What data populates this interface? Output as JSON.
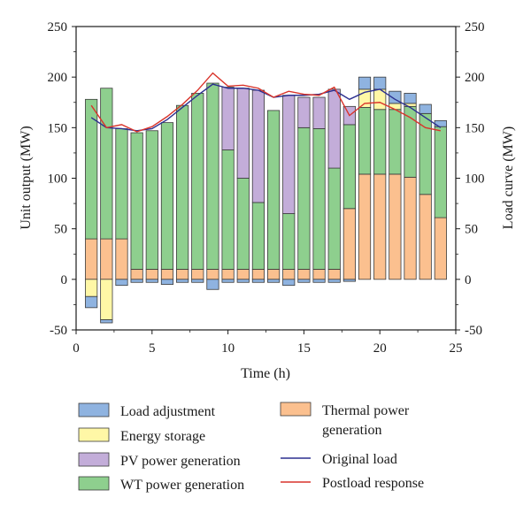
{
  "chart_data": {
    "type": "bar",
    "subtype": "stacked-bar-with-lines",
    "xlabel": "Time (h)",
    "ylabel": "Unit output (MW)",
    "y2label": "Load curve (MW)",
    "xlim": [
      0,
      25
    ],
    "ylim": [
      -50,
      250
    ],
    "y2lim": [
      -50,
      250
    ],
    "xticks": [
      0,
      5,
      10,
      15,
      20,
      25
    ],
    "yticks": [
      -50,
      0,
      50,
      100,
      150,
      200,
      250
    ],
    "legend_position": "bottom",
    "x": [
      1,
      2,
      3,
      4,
      5,
      6,
      7,
      8,
      9,
      10,
      11,
      12,
      13,
      14,
      15,
      16,
      17,
      18,
      19,
      20,
      21,
      22,
      23,
      24
    ],
    "series": [
      {
        "name": "Thermal power generation",
        "key": "thermal",
        "color": "#FBC08F",
        "values": [
          40,
          40,
          40,
          10,
          10,
          10,
          10,
          10,
          10,
          10,
          10,
          10,
          10,
          10,
          10,
          10,
          10,
          70,
          104,
          104,
          104,
          101,
          84,
          61
        ]
      },
      {
        "name": "WT power generation",
        "key": "wt",
        "color": "#8ECF8E",
        "values": [
          138,
          149,
          109,
          135,
          137,
          145,
          162,
          174,
          184,
          118,
          90,
          66,
          157,
          55,
          140,
          139,
          100,
          83,
          66,
          64,
          64,
          70,
          80,
          90
        ]
      },
      {
        "name": "PV power generation",
        "key": "pv",
        "color": "#C3ADD9",
        "values": [
          0,
          0,
          0,
          0,
          0,
          0,
          0,
          0,
          0,
          62,
          89,
          111,
          0,
          117,
          30,
          31,
          78,
          18,
          0,
          0,
          0,
          0,
          0,
          0
        ]
      },
      {
        "name": "Energy storage",
        "key": "storage",
        "color": "#FFF7A6",
        "values": [
          -17,
          -40,
          0,
          0,
          0,
          0,
          0,
          0,
          0,
          0,
          0,
          0,
          0,
          0,
          0,
          0,
          0,
          0,
          18,
          20,
          6,
          3,
          0,
          0
        ]
      },
      {
        "name": "Load adjustment",
        "key": "adjust",
        "color": "#8FB3E0",
        "values": [
          -11,
          -3,
          -6,
          -3,
          -3,
          -5,
          -3,
          -3,
          -10,
          -3,
          -3,
          -3,
          -3,
          -6,
          -3,
          -3,
          -3,
          -2,
          12,
          12,
          12,
          10,
          9,
          6
        ]
      }
    ],
    "lines": [
      {
        "name": "Original load",
        "key": "original",
        "color": "#2B2F8F",
        "values": [
          160,
          150,
          149,
          147,
          149,
          158,
          170,
          182,
          193,
          189,
          189,
          187,
          180,
          182,
          182,
          183,
          187,
          178,
          185,
          188,
          178,
          170,
          160,
          150
        ]
      },
      {
        "name": "Postload response",
        "key": "postload",
        "color": "#D9342B",
        "values": [
          172,
          150,
          153,
          146,
          151,
          161,
          173,
          187,
          204,
          191,
          192,
          189,
          180,
          186,
          183,
          182,
          190,
          162,
          174,
          175,
          168,
          160,
          150,
          147
        ]
      }
    ]
  },
  "legend": {
    "left": [
      {
        "label": "Load adjustment",
        "icon": "swatch",
        "color": "#8FB3E0"
      },
      {
        "label": "Energy storage",
        "icon": "swatch",
        "color": "#FFF7A6"
      },
      {
        "label": "PV power generation",
        "icon": "swatch",
        "color": "#C3ADD9"
      },
      {
        "label": "WT power generation",
        "icon": "swatch",
        "color": "#8ECF8E"
      }
    ],
    "right": [
      {
        "label": "Thermal power",
        "label2": "generation",
        "icon": "swatch",
        "color": "#FBC08F"
      },
      {
        "label": "Original load",
        "icon": "line",
        "color": "#2B2F8F"
      },
      {
        "label": "Postload response",
        "icon": "line",
        "color": "#D9342B"
      }
    ]
  }
}
